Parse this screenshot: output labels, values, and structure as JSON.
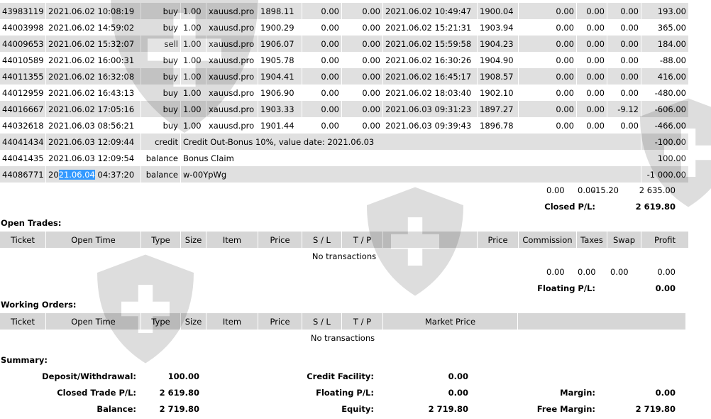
{
  "closed_trades": {
    "rows": [
      {
        "ticket": "43983119",
        "open_time": "2021.06.02 10:08:19",
        "type": "buy",
        "size": "1.00",
        "item": "xauusd.pro",
        "price": "1898.11",
        "sl": "0.00",
        "tp": "0.00",
        "close_time": "2021.06.02 10:49:47",
        "close_price": "1900.04",
        "commission": "0.00",
        "taxes": "0.00",
        "swap": "0.00",
        "profit": "193.00"
      },
      {
        "ticket": "44003998",
        "open_time": "2021.06.02 14:59:02",
        "type": "buy",
        "size": "1.00",
        "item": "xauusd.pro",
        "price": "1900.29",
        "sl": "0.00",
        "tp": "0.00",
        "close_time": "2021.06.02 15:21:31",
        "close_price": "1903.94",
        "commission": "0.00",
        "taxes": "0.00",
        "swap": "0.00",
        "profit": "365.00"
      },
      {
        "ticket": "44009653",
        "open_time": "2021.06.02 15:32:07",
        "type": "sell",
        "size": "1.00",
        "item": "xauusd.pro",
        "price": "1906.07",
        "sl": "0.00",
        "tp": "0.00",
        "close_time": "2021.06.02 15:59:58",
        "close_price": "1904.23",
        "commission": "0.00",
        "taxes": "0.00",
        "swap": "0.00",
        "profit": "184.00"
      },
      {
        "ticket": "44010589",
        "open_time": "2021.06.02 16:00:31",
        "type": "buy",
        "size": "1.00",
        "item": "xauusd.pro",
        "price": "1905.78",
        "sl": "0.00",
        "tp": "0.00",
        "close_time": "2021.06.02 16:30:26",
        "close_price": "1904.90",
        "commission": "0.00",
        "taxes": "0.00",
        "swap": "0.00",
        "profit": "-88.00"
      },
      {
        "ticket": "44011355",
        "open_time": "2021.06.02 16:32:08",
        "type": "buy",
        "size": "1.00",
        "item": "xauusd.pro",
        "price": "1904.41",
        "sl": "0.00",
        "tp": "0.00",
        "close_time": "2021.06.02 16:45:17",
        "close_price": "1908.57",
        "commission": "0.00",
        "taxes": "0.00",
        "swap": "0.00",
        "profit": "416.00"
      },
      {
        "ticket": "44012959",
        "open_time": "2021.06.02 16:43:13",
        "type": "buy",
        "size": "1.00",
        "item": "xauusd.pro",
        "price": "1906.90",
        "sl": "0.00",
        "tp": "0.00",
        "close_time": "2021.06.02 18:03:40",
        "close_price": "1902.10",
        "commission": "0.00",
        "taxes": "0.00",
        "swap": "0.00",
        "profit": "-480.00"
      },
      {
        "ticket": "44016667",
        "open_time": "2021.06.02 17:05:16",
        "type": "buy",
        "size": "1.00",
        "item": "xauusd.pro",
        "price": "1903.33",
        "sl": "0.00",
        "tp": "0.00",
        "close_time": "2021.06.03 09:31:23",
        "close_price": "1897.27",
        "commission": "0.00",
        "taxes": "0.00",
        "swap": "-9.12",
        "profit": "-606.00"
      },
      {
        "ticket": "44032618",
        "open_time": "2021.06.03 08:56:21",
        "type": "buy",
        "size": "1.00",
        "item": "xauusd.pro",
        "price": "1901.44",
        "sl": "0.00",
        "tp": "0.00",
        "close_time": "2021.06.03 09:39:43",
        "close_price": "1896.78",
        "commission": "0.00",
        "taxes": "0.00",
        "swap": "0.00",
        "profit": "-466.00"
      }
    ],
    "balance_rows": [
      {
        "ticket": "44041434",
        "open_time": "2021.06.03 12:09:44",
        "type": "credit",
        "comment": "Credit Out-Bonus 10%, value date: 2021.06.03",
        "profit": "-100.00"
      },
      {
        "ticket": "44041435",
        "open_time": "2021.06.03 12:09:54",
        "type": "balance",
        "comment": "Bonus Claim",
        "profit": "100.00"
      },
      {
        "ticket": "44086771",
        "open_time_pre": "20",
        "open_time_selected": "21.06.04",
        "open_time_post": " 04:37:20",
        "type": "balance",
        "comment": "w-00YpWg",
        "profit": "-1 000.00"
      }
    ],
    "totals": {
      "commission": "0.00",
      "taxes": "0.00",
      "swap": "-15.20",
      "profit": "2 635.00"
    },
    "closed_pl_label": "Closed P/L:",
    "closed_pl": "2 619.80"
  },
  "open_trades": {
    "title": "Open Trades:",
    "headers": [
      "Ticket",
      "Open Time",
      "Type",
      "Size",
      "Item",
      "Price",
      "S / L",
      "T / P",
      "",
      "Price",
      "Commission",
      "Taxes",
      "Swap",
      "Profit"
    ],
    "empty": "No transactions",
    "totals": {
      "commission": "0.00",
      "taxes": "0.00",
      "swap": "0.00",
      "profit": "0.00"
    },
    "floating_pl_label": "Floating P/L:",
    "floating_pl": "0.00"
  },
  "working_orders": {
    "title": "Working Orders:",
    "headers": [
      "Ticket",
      "Open Time",
      "Type",
      "Size",
      "Item",
      "Price",
      "S / L",
      "T / P",
      "Market Price",
      ""
    ],
    "empty": "No transactions"
  },
  "summary": {
    "title": "Summary:",
    "deposit_label": "Deposit/Withdrawal:",
    "deposit": "100.00",
    "credit_label": "Credit Facility:",
    "credit": "0.00",
    "closed_label": "Closed Trade P/L:",
    "closed": "2 619.80",
    "floating_label": "Floating P/L:",
    "floating": "0.00",
    "margin_label": "Margin:",
    "margin": "0.00",
    "balance_label": "Balance:",
    "balance": "2 719.80",
    "equity_label": "Equity:",
    "equity": "2 719.80",
    "free_margin_label": "Free Margin:",
    "free_margin": "2 719.80"
  }
}
